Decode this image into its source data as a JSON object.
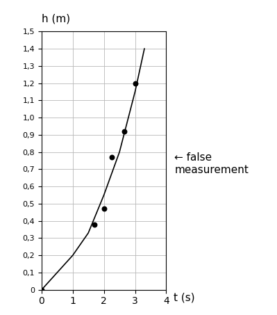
{
  "chart_data": {
    "type": "scatter",
    "x_label": "t (s)",
    "y_label": "h (m)",
    "annotations": [
      "← false\nmeasurement"
    ],
    "series": [
      {
        "type": "scatter",
        "x": [
          0,
          1.7,
          2.0,
          2.25,
          2.65,
          3.0
        ],
        "values": [
          0,
          0.38,
          0.47,
          0.77,
          0.92,
          1.2
        ],
        "color": "#000000",
        "marker": "o"
      },
      {
        "type": "line",
        "x": [
          0,
          0.5,
          1.0,
          1.5,
          2.0,
          2.5,
          3.0,
          3.3
        ],
        "values": [
          0,
          0.1,
          0.2,
          0.33,
          0.55,
          0.8,
          1.15,
          1.4
        ],
        "color": "#000000",
        "line_style": "solid"
      }
    ],
    "xlim": [
      0,
      4
    ],
    "xticks": [
      0,
      1,
      2,
      3,
      4
    ],
    "ylim": [
      0,
      1.5
    ],
    "yticks": [
      0,
      {
        "value": 0.1,
        "label": "0,1"
      },
      {
        "value": 0.2,
        "label": "0,2"
      },
      {
        "value": 0.3,
        "label": "0,3"
      },
      {
        "value": 0.4,
        "label": "0,4"
      },
      {
        "value": 0.5,
        "label": "0,5"
      },
      {
        "value": 0.6,
        "label": "0,6"
      },
      {
        "value": 0.7,
        "label": "0,7"
      },
      {
        "value": 0.8,
        "label": "0,8"
      },
      {
        "value": 0.9,
        "label": "0,9"
      },
      {
        "value": 1.0,
        "label": "1,0"
      },
      {
        "value": 1.1,
        "label": "1,1"
      },
      {
        "value": 1.2,
        "label": "1,2"
      },
      {
        "value": 1.3,
        "label": "1,3"
      },
      {
        "value": 1.4,
        "label": "1,4"
      },
      {
        "value": 1.5,
        "label": "1,5"
      }
    ],
    "grid": true
  }
}
